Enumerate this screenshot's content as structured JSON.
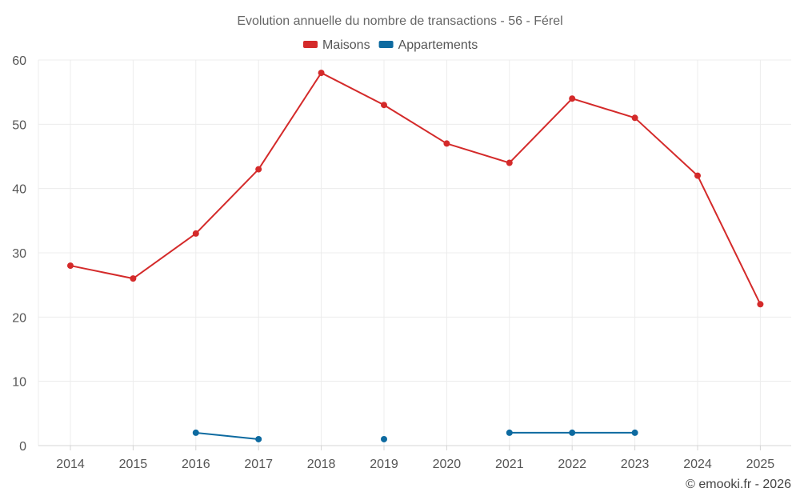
{
  "chart_data": {
    "type": "line",
    "title": "Evolution annuelle du nombre de transactions - 56 - Férel",
    "xlabel": "",
    "ylabel": "",
    "categories": [
      "2014",
      "2015",
      "2016",
      "2017",
      "2018",
      "2019",
      "2020",
      "2021",
      "2022",
      "2023",
      "2024",
      "2025"
    ],
    "ylim": [
      0,
      60
    ],
    "yticks": [
      0,
      10,
      20,
      30,
      40,
      50,
      60
    ],
    "grid": true,
    "legend_position": "top-center",
    "series": [
      {
        "name": "Maisons",
        "color": "#d42a2a",
        "values": [
          28,
          26,
          33,
          43,
          58,
          53,
          47,
          44,
          54,
          51,
          42,
          22
        ]
      },
      {
        "name": "Appartements",
        "color": "#0d6aa0",
        "values": [
          null,
          null,
          2,
          1,
          null,
          1,
          null,
          2,
          2,
          2,
          null,
          null
        ]
      }
    ]
  },
  "credit": "© emooki.fr - 2026"
}
